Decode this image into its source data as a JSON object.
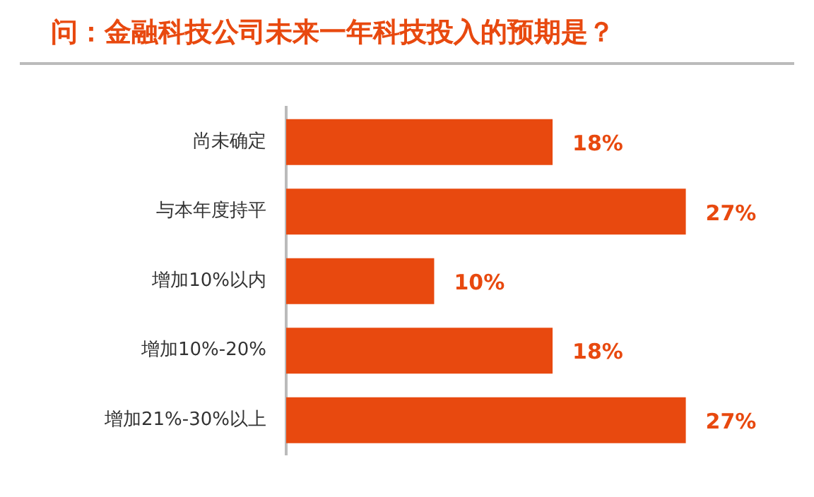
{
  "chart_data": {
    "type": "bar",
    "orientation": "horizontal",
    "title": "问：金融科技公司未来一年科技投入的预期是？",
    "categories": [
      "尚未确定",
      "与本年度持平",
      "增加10%以内",
      "增加10%-20%",
      "增加21%-30%以上"
    ],
    "values": [
      18,
      27,
      10,
      18,
      27
    ],
    "color": "#e8490f",
    "value_labels": [
      "18%",
      "27%",
      "10%",
      "18%",
      "27%"
    ]
  }
}
